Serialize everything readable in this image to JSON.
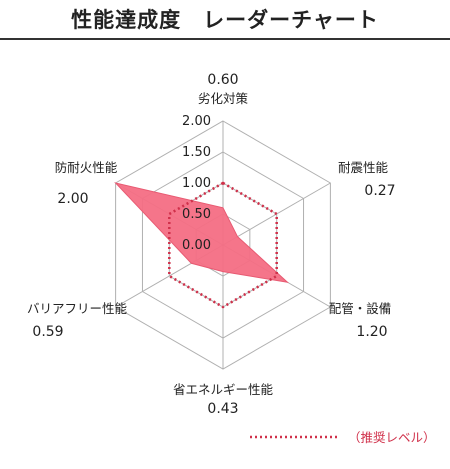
{
  "title": "性能達成度　レーダーチャート",
  "chart_data": {
    "type": "radar",
    "axes": [
      {
        "label": "劣化対策",
        "value": 0.6,
        "value_label": "0.60"
      },
      {
        "label": "耐震性能",
        "value": 0.27,
        "value_label": "0.27"
      },
      {
        "label": "配管・設備",
        "value": 1.2,
        "value_label": "1.20"
      },
      {
        "label": "省エネルギー性能",
        "value": 0.43,
        "value_label": "0.43"
      },
      {
        "label": "バリアフリー性能",
        "value": 0.59,
        "value_label": "0.59"
      },
      {
        "label": "防耐火性能",
        "value": 2.0,
        "value_label": "2.00"
      }
    ],
    "ticks": [
      0.0,
      0.5,
      1.0,
      1.5,
      2.0
    ],
    "tick_labels": [
      "0.00",
      "0.50",
      "1.00",
      "1.50",
      "2.00"
    ],
    "range": [
      0,
      2
    ],
    "recommended_level": 1.0,
    "legend": {
      "recommended_label": "（推奨レベル）",
      "position": "bottom-right"
    },
    "colors": {
      "series": "#f46e84",
      "recommended": "#d0304a",
      "grid": "#b0b0b0"
    }
  }
}
